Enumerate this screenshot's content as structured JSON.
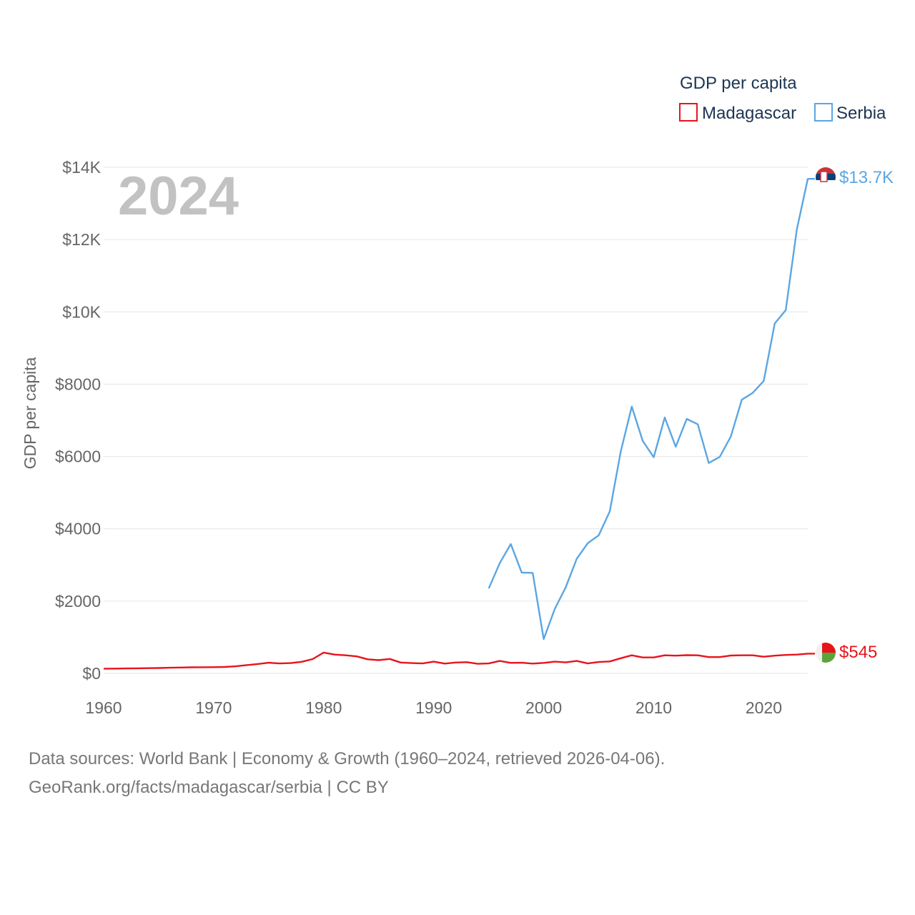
{
  "chart_data": {
    "type": "line",
    "title": "GDP per capita",
    "ylabel": "GDP per capita",
    "year_label": "2024",
    "xlim": [
      1960,
      2024
    ],
    "ylim": [
      0,
      14000
    ],
    "x_ticks": [
      1960,
      1970,
      1980,
      1990,
      2000,
      2010,
      2020
    ],
    "x_tick_labels": [
      "1960",
      "1970",
      "1980",
      "1990",
      "2000",
      "2010",
      "2020"
    ],
    "y_ticks": [
      0,
      2000,
      4000,
      6000,
      8000,
      10000,
      12000,
      14000
    ],
    "y_tick_labels": [
      "$0",
      "$2000",
      "$4000",
      "$6000",
      "$8000",
      "$10K",
      "$12K",
      "$14K"
    ],
    "legend_title": "GDP per capita",
    "legend_position": "top-right",
    "series": [
      {
        "name": "Madagascar",
        "color": "#e8141c",
        "end_label": "$545",
        "x": [
          1960,
          1961,
          1962,
          1963,
          1964,
          1965,
          1966,
          1967,
          1968,
          1969,
          1970,
          1971,
          1972,
          1973,
          1974,
          1975,
          1976,
          1977,
          1978,
          1979,
          1980,
          1981,
          1982,
          1983,
          1984,
          1985,
          1986,
          1987,
          1988,
          1989,
          1990,
          1991,
          1992,
          1993,
          1994,
          1995,
          1996,
          1997,
          1998,
          1999,
          2000,
          2001,
          2002,
          2003,
          2004,
          2005,
          2006,
          2007,
          2008,
          2009,
          2010,
          2011,
          2012,
          2013,
          2014,
          2015,
          2016,
          2017,
          2018,
          2019,
          2020,
          2021,
          2022,
          2023,
          2024
        ],
        "values": [
          130,
          132,
          136,
          140,
          144,
          148,
          156,
          163,
          168,
          170,
          172,
          178,
          195,
          230,
          260,
          295,
          275,
          285,
          320,
          395,
          575,
          520,
          500,
          470,
          390,
          365,
          400,
          300,
          285,
          275,
          325,
          270,
          300,
          310,
          265,
          275,
          345,
          290,
          295,
          270,
          290,
          325,
          305,
          345,
          275,
          315,
          330,
          420,
          500,
          440,
          440,
          500,
          490,
          505,
          500,
          450,
          450,
          495,
          500,
          500,
          460,
          490,
          510,
          520,
          545
        ]
      },
      {
        "name": "Serbia",
        "color": "#5ba6e3",
        "end_label": "$13.7K",
        "x": [
          1995,
          1996,
          1997,
          1998,
          1999,
          2000,
          2001,
          2002,
          2003,
          2004,
          2005,
          2006,
          2007,
          2008,
          2009,
          2010,
          2011,
          2012,
          2013,
          2014,
          2015,
          2016,
          2017,
          2018,
          2019,
          2020,
          2021,
          2022,
          2023,
          2024
        ],
        "values": [
          2350,
          3050,
          3580,
          2790,
          2780,
          950,
          1780,
          2380,
          3170,
          3600,
          3820,
          4480,
          6140,
          7380,
          6430,
          5980,
          7080,
          6270,
          7040,
          6890,
          5820,
          5990,
          6550,
          7570,
          7760,
          8090,
          9680,
          10050,
          12270,
          13680
        ]
      }
    ]
  },
  "footer": {
    "line1": "Data sources: World Bank | Economy & Growth (1960–2024, retrieved 2026-04-06).",
    "line2": "GeoRank.org/facts/madagascar/serbia | CC BY"
  }
}
